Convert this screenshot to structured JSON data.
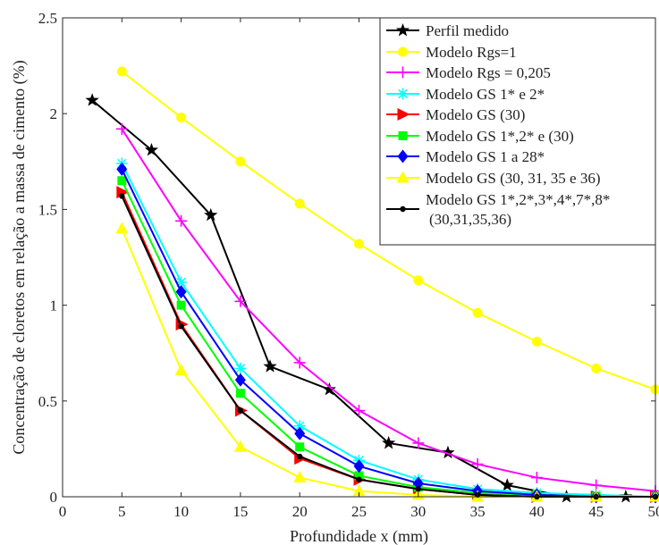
{
  "chart_data": {
    "type": "line",
    "title": "",
    "xlabel": "Profundidade x (mm)",
    "ylabel": "Concentração de cloretos em relação a massa de cimento (%)",
    "xlim": [
      0,
      50
    ],
    "ylim": [
      0,
      2.5
    ],
    "xticks": [
      0,
      5,
      10,
      15,
      20,
      25,
      30,
      35,
      40,
      45,
      50
    ],
    "yticks": [
      0,
      0.5,
      1,
      1.5,
      2,
      2.5
    ],
    "xtick_labels": [
      "0",
      "5",
      "10",
      "15",
      "20",
      "25",
      "30",
      "35",
      "40",
      "45",
      "50"
    ],
    "ytick_labels": [
      "0",
      "0.5",
      "1",
      "1.5",
      "2",
      "2.5"
    ],
    "grid": false,
    "legend_position": "top-right",
    "series": [
      {
        "name": "Perfil medido",
        "color": "#000000",
        "marker": "star",
        "x": [
          2.5,
          7.5,
          12.5,
          17.5,
          22.5,
          27.5,
          32.5,
          37.5,
          42.5,
          47.5
        ],
        "y": [
          2.07,
          1.81,
          1.47,
          0.68,
          0.56,
          0.28,
          0.23,
          0.06,
          0.0,
          0.0
        ]
      },
      {
        "name": "Modelo Rgs=1",
        "color": "#ffff00",
        "marker": "circle",
        "x": [
          5,
          10,
          15,
          20,
          25,
          30,
          35,
          40,
          45,
          50
        ],
        "y": [
          2.22,
          1.98,
          1.75,
          1.53,
          1.32,
          1.13,
          0.96,
          0.81,
          0.67,
          0.56
        ]
      },
      {
        "name": "Modelo Rgs = 0,205",
        "color": "#ff00ff",
        "marker": "plus",
        "x": [
          5,
          10,
          15,
          20,
          25,
          30,
          35,
          40,
          45,
          50
        ],
        "y": [
          1.92,
          1.44,
          1.02,
          0.7,
          0.45,
          0.28,
          0.17,
          0.1,
          0.06,
          0.03
        ]
      },
      {
        "name": "Modelo GS 1* e 2*",
        "color": "#00ffff",
        "marker": "asterisk",
        "x": [
          5,
          10,
          15,
          20,
          25,
          30,
          35,
          40,
          45,
          50
        ],
        "y": [
          1.74,
          1.12,
          0.67,
          0.37,
          0.19,
          0.09,
          0.04,
          0.02,
          0.01,
          0.0
        ]
      },
      {
        "name": "Modelo GS (30)",
        "color": "#ff0000",
        "marker": "triangle-right",
        "x": [
          5,
          10,
          15,
          20,
          25,
          30,
          35,
          40,
          45,
          50
        ],
        "y": [
          1.59,
          0.9,
          0.45,
          0.2,
          0.09,
          0.04,
          0.01,
          0.0,
          0.0,
          0.0
        ]
      },
      {
        "name": "Modelo GS 1*,2* e (30)",
        "color": "#00ff00",
        "marker": "square",
        "x": [
          5,
          10,
          15,
          20,
          25,
          30,
          35,
          40,
          45,
          50
        ],
        "y": [
          1.65,
          1.0,
          0.54,
          0.26,
          0.11,
          0.05,
          0.02,
          0.01,
          0.0,
          0.0
        ]
      },
      {
        "name": "Modelo GS 1 a 28*",
        "color": "#0000ff",
        "marker": "diamond",
        "x": [
          5,
          10,
          15,
          20,
          25,
          30,
          35,
          40,
          45,
          50
        ],
        "y": [
          1.71,
          1.07,
          0.61,
          0.33,
          0.16,
          0.07,
          0.03,
          0.01,
          0.0,
          0.0
        ]
      },
      {
        "name": "Modelo GS (30, 31, 35 e 36)",
        "color": "#ffff00",
        "marker": "triangle-up",
        "x": [
          5,
          10,
          15,
          20,
          25,
          30,
          35,
          40,
          45,
          50
        ],
        "y": [
          1.4,
          0.66,
          0.26,
          0.1,
          0.03,
          0.01,
          0.0,
          0.0,
          0.0,
          0.0
        ]
      },
      {
        "name": "Modelo GS 1*,2*,3*,4*,7*,8* (30,31,35,36)",
        "legend_lines": [
          "Modelo GS 1*,2*,3*,4*,7*,8*",
          "(30,31,35,36)"
        ],
        "color": "#000000",
        "marker": "dot",
        "x": [
          5,
          10,
          15,
          20,
          25,
          30,
          35,
          40,
          45,
          50
        ],
        "y": [
          1.57,
          0.89,
          0.45,
          0.21,
          0.09,
          0.04,
          0.01,
          0.0,
          0.0,
          0.0
        ]
      }
    ]
  }
}
